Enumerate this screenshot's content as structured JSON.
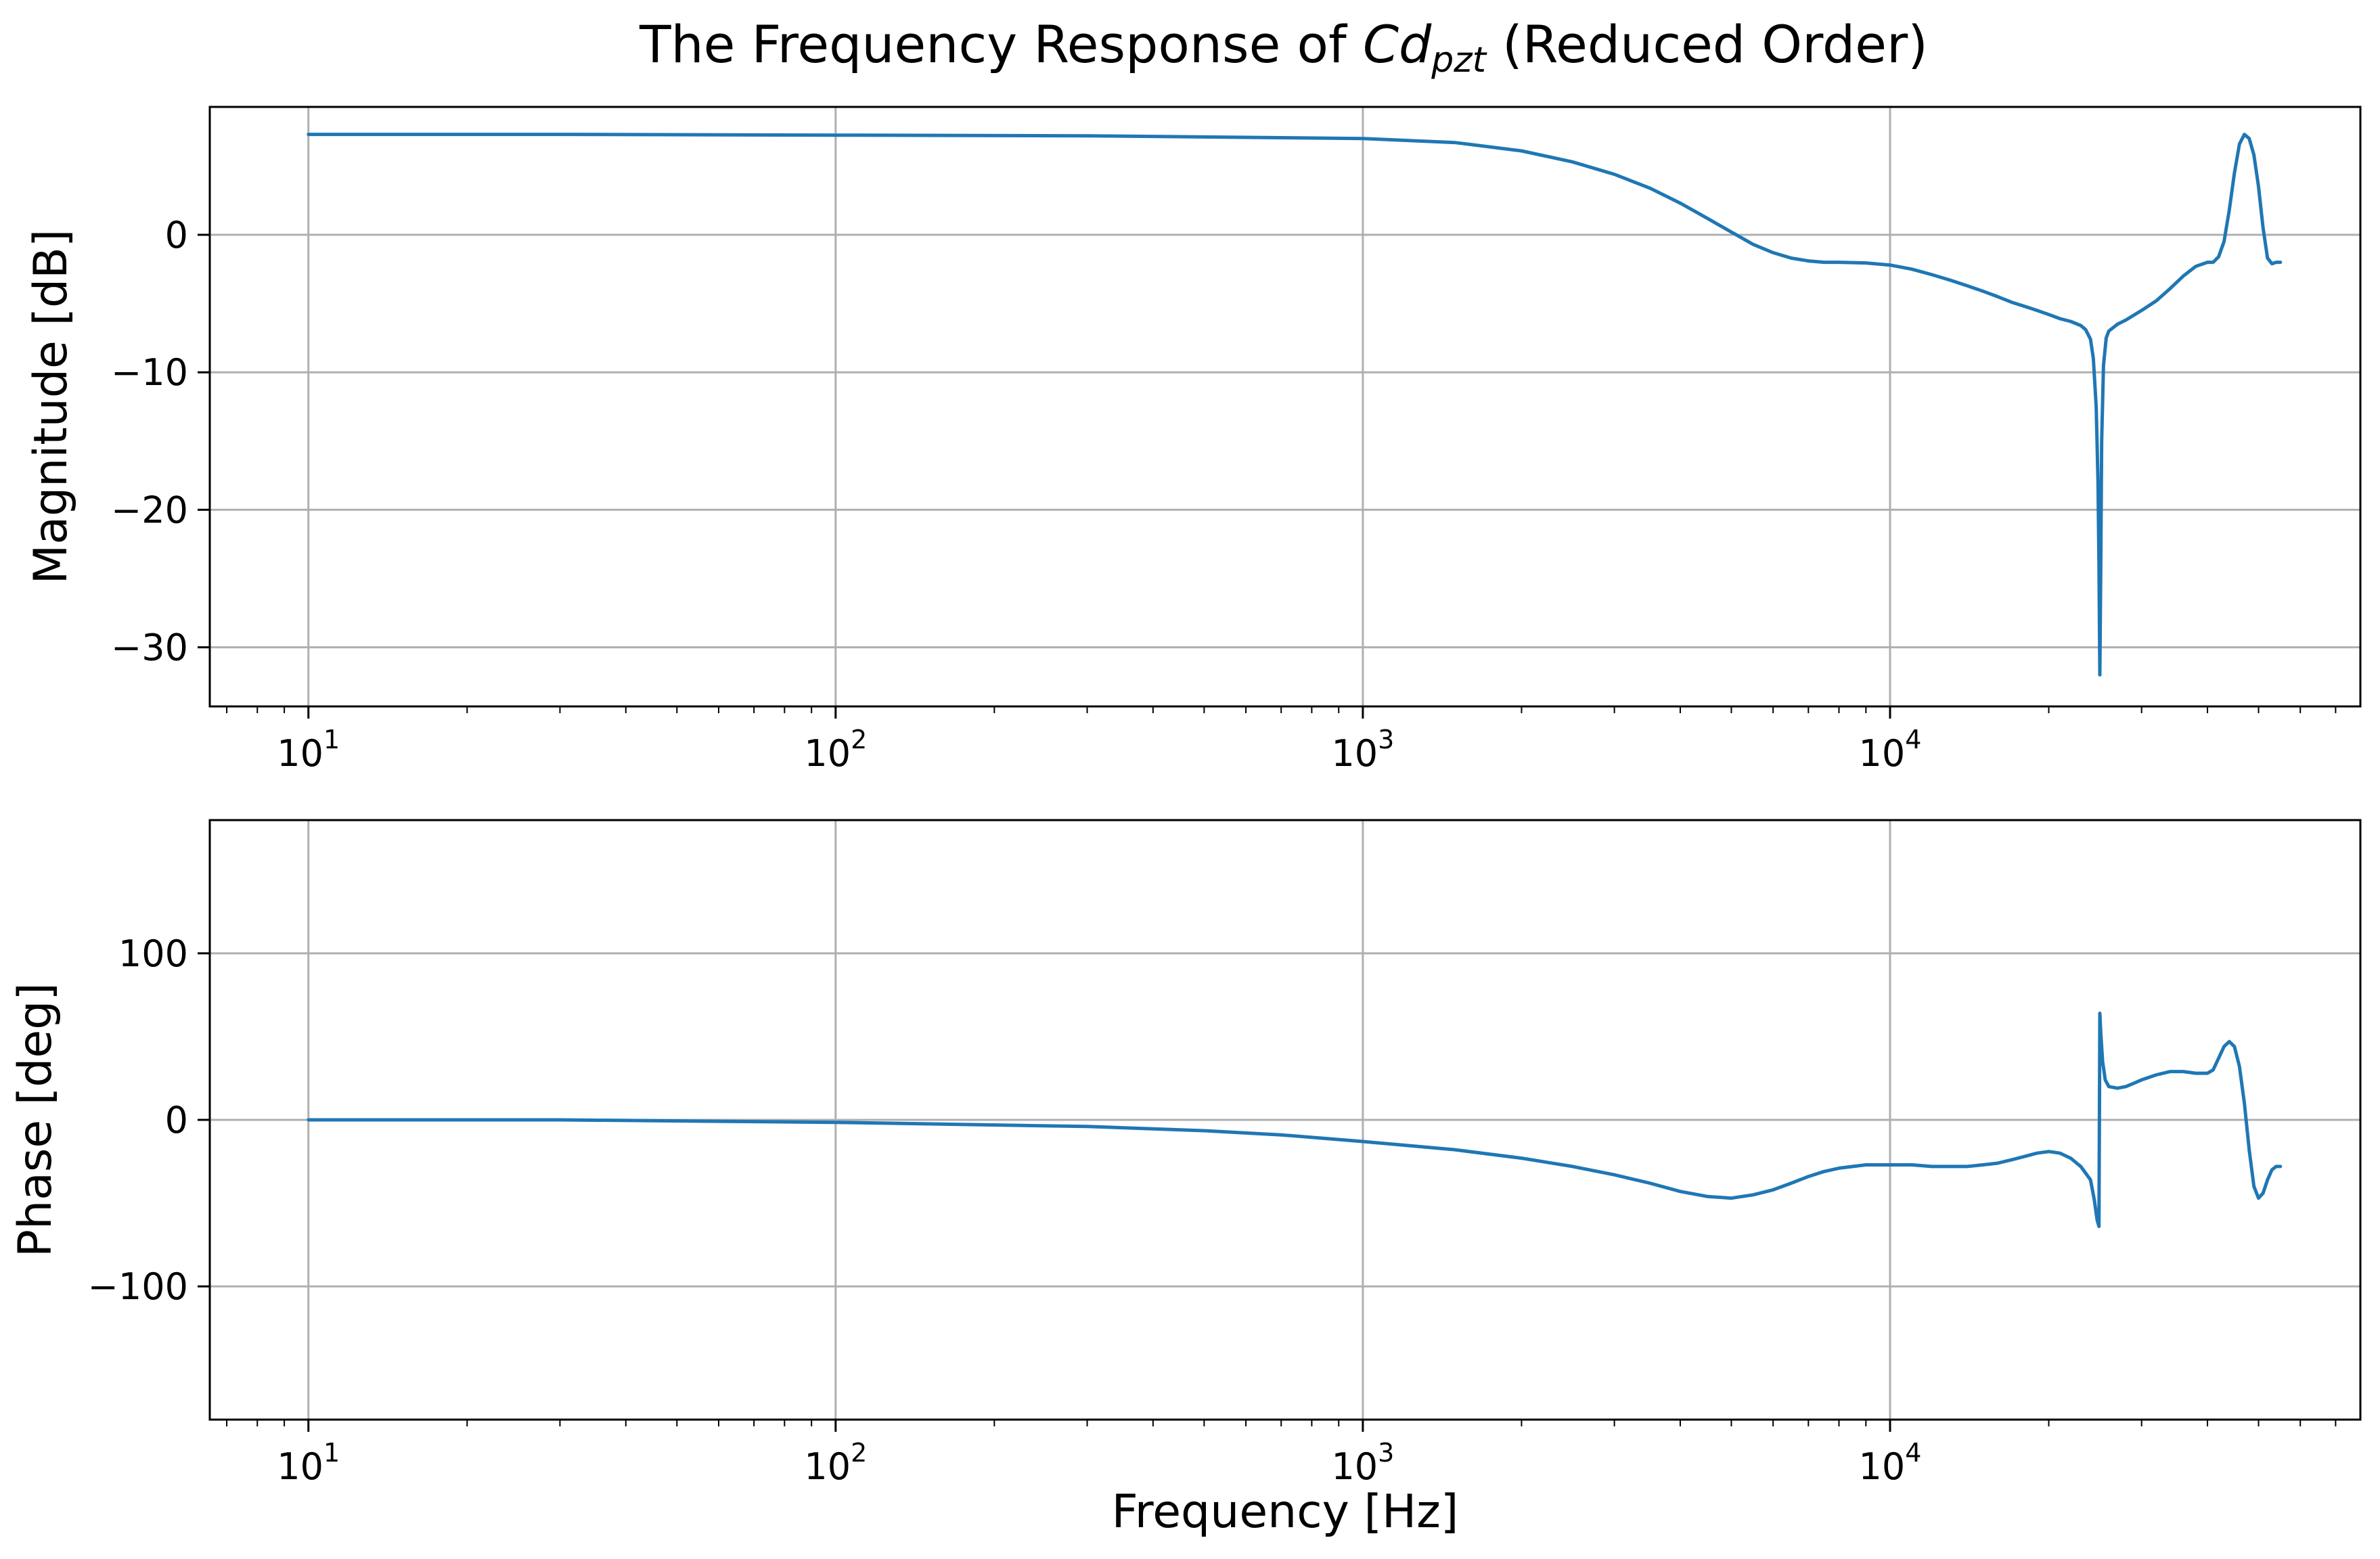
{
  "figure": {
    "title": "The Frequency Response of Cdpzt (Reduced Order)",
    "title_parts": {
      "prefix": "The Frequency Response of ",
      "symbol": "Cd",
      "subscript": "pzt",
      "suffix": " (Reduced Order)"
    }
  },
  "chart_data": [
    {
      "type": "line",
      "xscale": "log",
      "xlabel": "",
      "ylabel": "Magnitude [dB]",
      "xlim": [
        6.5,
        78000
      ],
      "ylim": [
        -34.3,
        9.3
      ],
      "xticks": [
        {
          "value": 10,
          "base": "10",
          "exp": "1"
        },
        {
          "value": 100,
          "base": "10",
          "exp": "2"
        },
        {
          "value": 1000,
          "base": "10",
          "exp": "3"
        },
        {
          "value": 10000,
          "base": "10",
          "exp": "4"
        }
      ],
      "yticks": [
        {
          "value": 0,
          "label": "0"
        },
        {
          "value": -10,
          "label": "−10"
        },
        {
          "value": -20,
          "label": "−20"
        },
        {
          "value": -30,
          "label": "−30"
        }
      ],
      "grid": true,
      "legend": "none",
      "series": [
        {
          "color": "#1f77b4",
          "x": [
            10,
            30,
            100,
            300,
            1000,
            1500,
            2000,
            2500,
            3000,
            3500,
            4000,
            4500,
            5000,
            5500,
            6000,
            6500,
            7000,
            7500,
            8000,
            9000,
            10000,
            11000,
            12000,
            13000,
            14000,
            15000,
            16000,
            17000,
            18000,
            19000,
            20000,
            21000,
            22000,
            23000,
            23500,
            24000,
            24300,
            24600,
            24800,
            24900,
            25000,
            25100,
            25200,
            25400,
            25700,
            26000,
            27000,
            28000,
            30000,
            32000,
            34000,
            36000,
            38000,
            40000,
            41000,
            42000,
            43000,
            44000,
            45000,
            46000,
            47000,
            48000,
            49000,
            50000,
            51000,
            52000,
            53000,
            54000,
            55000
          ],
          "y": [
            7.3,
            7.3,
            7.25,
            7.2,
            7.0,
            6.7,
            6.1,
            5.3,
            4.4,
            3.4,
            2.3,
            1.2,
            0.2,
            -0.7,
            -1.3,
            -1.7,
            -1.9,
            -2.0,
            -2.0,
            -2.05,
            -2.2,
            -2.5,
            -2.9,
            -3.3,
            -3.7,
            -4.1,
            -4.5,
            -4.9,
            -5.2,
            -5.5,
            -5.8,
            -6.1,
            -6.3,
            -6.6,
            -6.9,
            -7.6,
            -9.0,
            -12.5,
            -18.0,
            -24.0,
            -32.0,
            -24.0,
            -15.0,
            -9.5,
            -7.5,
            -7.0,
            -6.5,
            -6.2,
            -5.5,
            -4.8,
            -3.9,
            -3.0,
            -2.3,
            -2.0,
            -2.0,
            -1.6,
            -0.5,
            1.8,
            4.5,
            6.6,
            7.3,
            7.0,
            5.8,
            3.5,
            0.5,
            -1.7,
            -2.1,
            -2.0,
            -2.0
          ]
        }
      ]
    },
    {
      "type": "line",
      "xscale": "log",
      "xlabel": "Frequency [Hz]",
      "ylabel": "Phase [deg]",
      "xlim": [
        6.5,
        78000
      ],
      "ylim": [
        -180,
        180
      ],
      "xticks": [
        {
          "value": 10,
          "base": "10",
          "exp": "1"
        },
        {
          "value": 100,
          "base": "10",
          "exp": "2"
        },
        {
          "value": 1000,
          "base": "10",
          "exp": "3"
        },
        {
          "value": 10000,
          "base": "10",
          "exp": "4"
        }
      ],
      "yticks": [
        {
          "value": 100,
          "label": "100"
        },
        {
          "value": 0,
          "label": "0"
        },
        {
          "value": -100,
          "label": "−100"
        }
      ],
      "grid": true,
      "legend": "none",
      "series": [
        {
          "color": "#1f77b4",
          "x": [
            10,
            30,
            100,
            300,
            500,
            700,
            1000,
            1500,
            2000,
            2500,
            3000,
            3500,
            4000,
            4500,
            5000,
            5500,
            6000,
            6500,
            7000,
            7500,
            8000,
            9000,
            10000,
            11000,
            12000,
            13000,
            14000,
            15000,
            16000,
            17000,
            18000,
            19000,
            20000,
            21000,
            22000,
            23000,
            24000,
            24400,
            24700,
            24900,
            25000,
            25100,
            25300,
            25600,
            26000,
            27000,
            28000,
            29000,
            30000,
            32000,
            34000,
            36000,
            38000,
            40000,
            41000,
            42000,
            43000,
            44000,
            45000,
            46000,
            47000,
            48000,
            49000,
            50000,
            51000,
            52000,
            53000,
            54000,
            55000
          ],
          "y": [
            0,
            0,
            -1.5,
            -4,
            -6.5,
            -9,
            -13,
            -18,
            -23,
            -28,
            -33,
            -38,
            -43,
            -46,
            -47,
            -45,
            -42,
            -38,
            -34,
            -31,
            -29,
            -27,
            -27,
            -27,
            -28,
            -28,
            -28,
            -27,
            -26,
            -24,
            -22,
            -20,
            -19,
            -20,
            -23,
            -28,
            -36,
            -48,
            -60,
            -64,
            64,
            52,
            35,
            24,
            20,
            19,
            20,
            22,
            24,
            27,
            29,
            29,
            28,
            28,
            30,
            37,
            44,
            47,
            44,
            32,
            10,
            -18,
            -40,
            -47,
            -44,
            -36,
            -30,
            -28,
            -28
          ]
        }
      ]
    }
  ]
}
